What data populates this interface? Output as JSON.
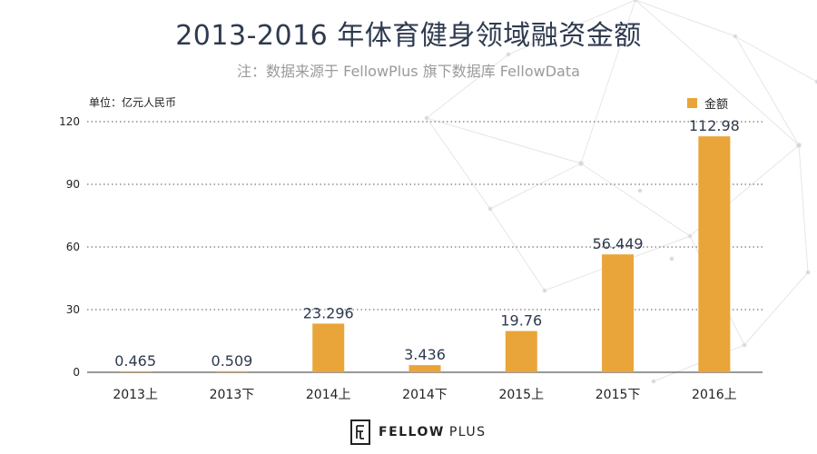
{
  "title": "2013-2016 年体育健身领域融资金额",
  "subtitle": "注：数据来源于 FellowPlus 旗下数据库 FellowData",
  "unit_label": "单位：亿元人民币",
  "footer": {
    "brand_bold": "FELLOW",
    "brand_light": "PLUS"
  },
  "colors": {
    "bar": "#e9a53a",
    "title": "#2e3a4f",
    "grid": "#555555"
  },
  "chart_data": {
    "type": "bar",
    "title": "2013-2016 年体育健身领域融资金额",
    "categories": [
      "2013上",
      "2013下",
      "2014上",
      "2014下",
      "2015上",
      "2015下",
      "2016上"
    ],
    "series": [
      {
        "name": "金额",
        "values": [
          0.465,
          0.509,
          23.296,
          3.436,
          19.76,
          56.449,
          112.98
        ]
      }
    ],
    "value_labels": [
      "0.465",
      "0.509",
      "23.296",
      "3.436",
      "19.76",
      "56.449",
      "112.98"
    ],
    "ylim": [
      0,
      120
    ],
    "yticks": [
      0,
      30,
      60,
      90,
      120
    ],
    "grid": true,
    "legend_position": "top-right"
  }
}
